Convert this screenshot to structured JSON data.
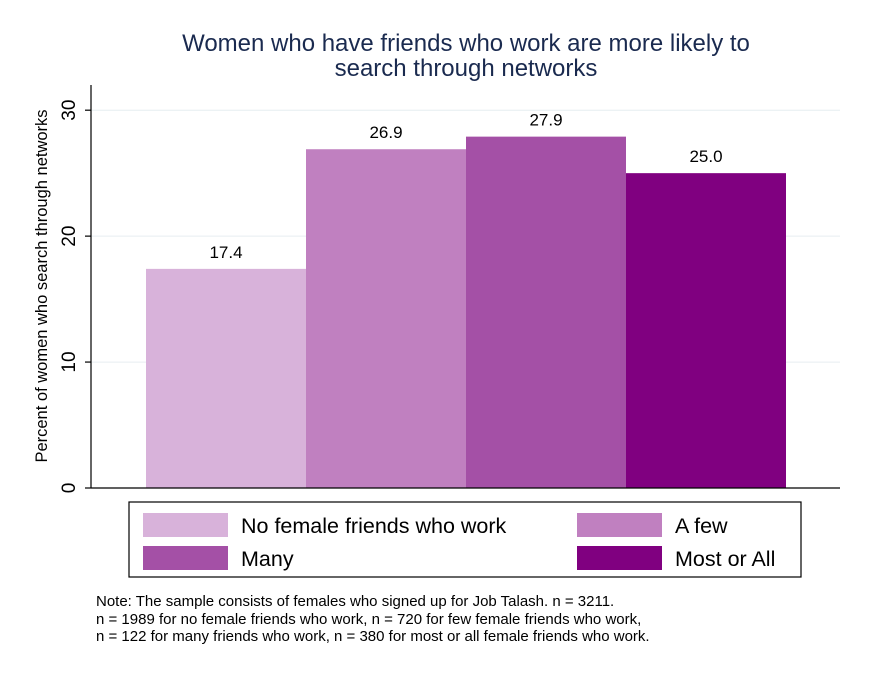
{
  "chart_data": {
    "type": "bar",
    "title": [
      "Women who have friends who work are more likely to",
      "search through networks"
    ],
    "ylabel": "Percent of women who search through networks",
    "ylim": [
      0,
      32
    ],
    "yticks": [
      0,
      10,
      20,
      30
    ],
    "grid": true,
    "legend_position": "bottom",
    "series": [
      {
        "name": "No female friends who work",
        "value": 17.4,
        "label": "17.4",
        "color": "#d8b2da"
      },
      {
        "name": "A few",
        "value": 26.9,
        "label": "26.9",
        "color": "#c080c0"
      },
      {
        "name": "Many",
        "value": 27.9,
        "label": "27.9",
        "color": "#a450a6"
      },
      {
        "name": "Most or All",
        "value": 25.0,
        "label": "25.0",
        "color": "#800080"
      }
    ]
  },
  "note": [
    "Note: The sample consists of females who signed up for Job Talash. n = 3211.",
    "n = 1989 for no female friends who work, n = 720 for few female friends who work,",
    "n = 122 for many friends who work, n = 380 for most or all female friends who work."
  ],
  "colors": {
    "title": "#1a2a4f",
    "grid": "#e6eef0",
    "axis": "#000000"
  }
}
